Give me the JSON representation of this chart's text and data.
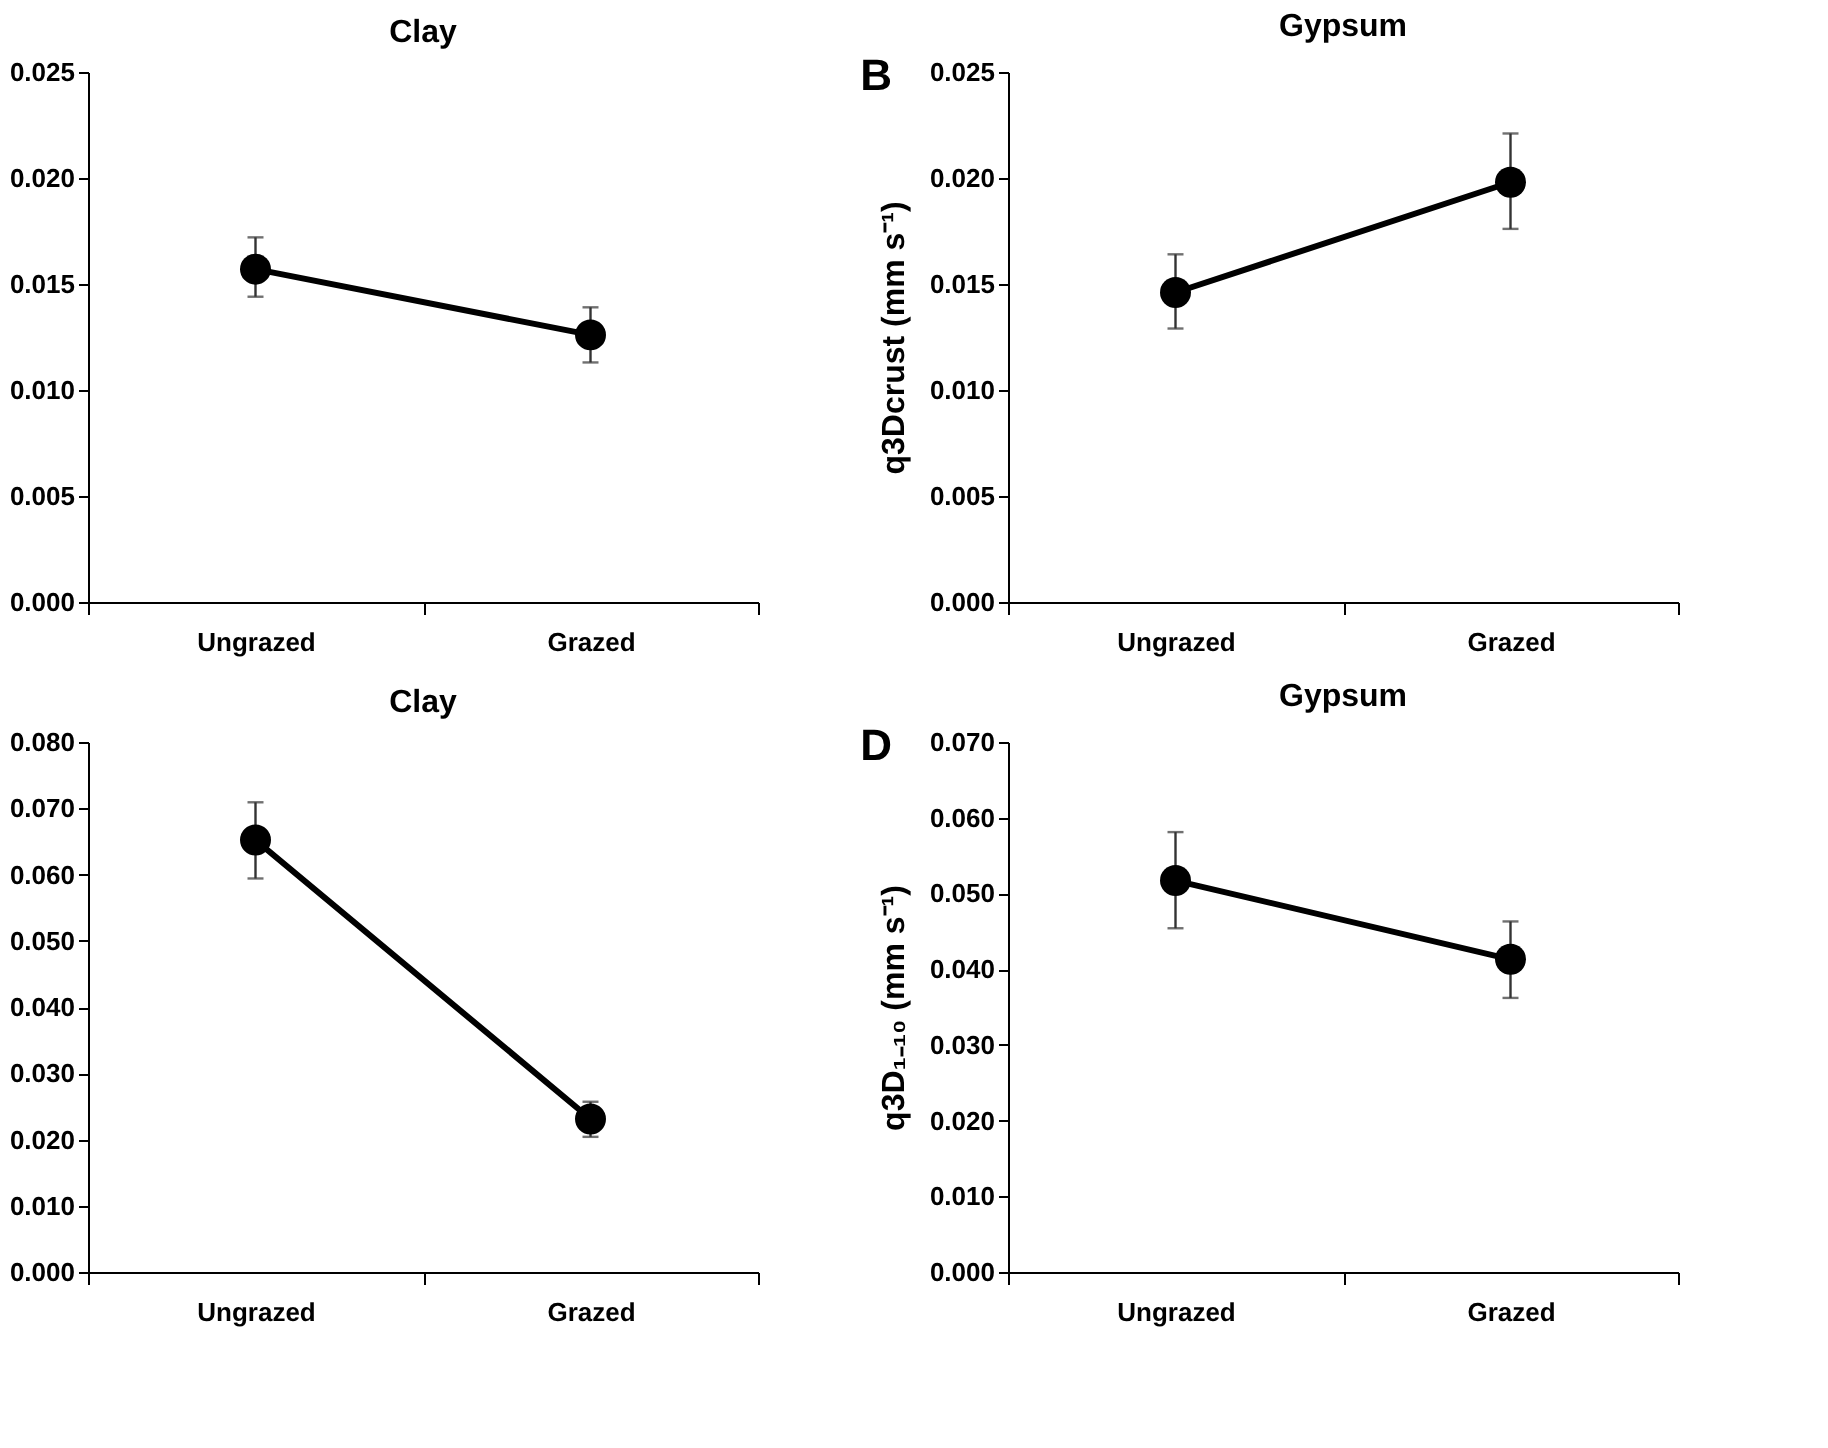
{
  "chart_data": [
    {
      "type": "line",
      "title": "Clay",
      "categories": [
        "Ungrazed",
        "Grazed"
      ],
      "marker": "circle",
      "series": [
        {
          "color": "#000000",
          "values": [
            0.0157,
            0.0126
          ],
          "errors": [
            [
              0.0144,
              0.0172
            ],
            [
              0.0113,
              0.0139
            ]
          ]
        }
      ],
      "ylim": [
        0,
        0.025
      ],
      "yticks": [
        {
          "value": 0,
          "label": "0.000"
        },
        {
          "value": 0.005,
          "label": "0.005"
        },
        {
          "value": 0.01,
          "label": "0.010"
        },
        {
          "value": 0.015,
          "label": "0.015"
        },
        {
          "value": 0.02,
          "label": "0.020"
        },
        {
          "value": 0.025,
          "label": "0.025"
        }
      ]
    },
    {
      "type": "line",
      "title": "Gypsum",
      "categories": [
        "Ungrazed",
        "Grazed"
      ],
      "marker": "circle",
      "ylabel": "q3Dcrust (mm s⁻¹)",
      "annotations": [
        "B"
      ],
      "series": [
        {
          "color": "#000000",
          "values": [
            0.0146,
            0.0198
          ],
          "errors": [
            [
              0.0129,
              0.0164
            ],
            [
              0.0176,
              0.0221
            ]
          ]
        }
      ],
      "ylim": [
        0,
        0.025
      ],
      "yticks": [
        {
          "value": 0,
          "label": "0.000"
        },
        {
          "value": 0.005,
          "label": "0.005"
        },
        {
          "value": 0.01,
          "label": "0.010"
        },
        {
          "value": 0.015,
          "label": "0.015"
        },
        {
          "value": 0.02,
          "label": "0.020"
        },
        {
          "value": 0.025,
          "label": "0.025"
        }
      ]
    },
    {
      "type": "line",
      "title": "Clay",
      "categories": [
        "Ungrazed",
        "Grazed"
      ],
      "marker": "circle",
      "series": [
        {
          "color": "#000000",
          "values": [
            0.0652,
            0.0231
          ],
          "errors": [
            [
              0.0594,
              0.0709
            ],
            [
              0.0204,
              0.0257
            ]
          ]
        }
      ],
      "ylim": [
        0,
        0.08
      ],
      "yticks": [
        {
          "value": 0,
          "label": "0.000"
        },
        {
          "value": 0.01,
          "label": "0.010"
        },
        {
          "value": 0.02,
          "label": "0.020"
        },
        {
          "value": 0.03,
          "label": "0.030"
        },
        {
          "value": 0.04,
          "label": "0.040"
        },
        {
          "value": 0.05,
          "label": "0.050"
        },
        {
          "value": 0.06,
          "label": "0.060"
        },
        {
          "value": 0.07,
          "label": "0.070"
        },
        {
          "value": 0.08,
          "label": "0.080"
        }
      ]
    },
    {
      "type": "line",
      "title": "Gypsum",
      "categories": [
        "Ungrazed",
        "Grazed"
      ],
      "marker": "circle",
      "ylabel": "q3D₁₋₁₀ (mm s⁻¹)",
      "annotations": [
        "D"
      ],
      "series": [
        {
          "color": "#000000",
          "values": [
            0.0517,
            0.0413
          ],
          "errors": [
            [
              0.0454,
              0.0581
            ],
            [
              0.0362,
              0.0463
            ]
          ]
        }
      ],
      "ylim": [
        0,
        0.07
      ],
      "yticks": [
        {
          "value": 0,
          "label": "0.000"
        },
        {
          "value": 0.01,
          "label": "0.010"
        },
        {
          "value": 0.02,
          "label": "0.020"
        },
        {
          "value": 0.03,
          "label": "0.030"
        },
        {
          "value": 0.04,
          "label": "0.040"
        },
        {
          "value": 0.05,
          "label": "0.050"
        },
        {
          "value": 0.06,
          "label": "0.060"
        },
        {
          "value": 0.07,
          "label": "0.070"
        }
      ]
    }
  ]
}
